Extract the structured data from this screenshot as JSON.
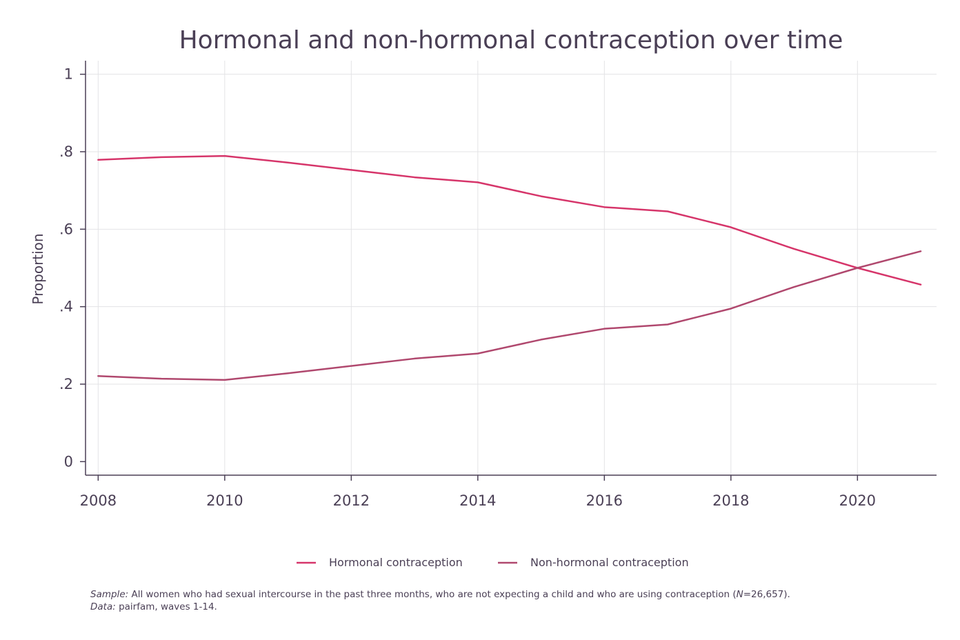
{
  "chart_data": {
    "type": "line",
    "title": "Hormonal and non-hormonal contraception over time",
    "xlabel": "",
    "ylabel": "Proportion",
    "x": [
      2008,
      2009,
      2010,
      2011,
      2012,
      2013,
      2014,
      2015,
      2016,
      2017,
      2018,
      2019,
      2020,
      2021
    ],
    "xlim": [
      2007.8,
      2021.25
    ],
    "ylim": [
      -0.035,
      1.035
    ],
    "xticks": [
      2008,
      2010,
      2012,
      2014,
      2016,
      2018,
      2020
    ],
    "xtick_labels": [
      "2008",
      "2010",
      "2012",
      "2014",
      "2016",
      "2018",
      "2020"
    ],
    "yticks": [
      0,
      0.2,
      0.4,
      0.6,
      0.8,
      1
    ],
    "ytick_labels": [
      "0",
      ".2",
      ".4",
      ".6",
      ".8",
      "1"
    ],
    "grid": true,
    "legend_position": "bottom",
    "series": [
      {
        "name": "Hormonal contraception",
        "color": "#d6356a",
        "values": [
          0.779,
          0.786,
          0.789,
          0.772,
          0.753,
          0.734,
          0.721,
          0.685,
          0.657,
          0.646,
          0.605,
          0.549,
          0.5,
          0.457
        ]
      },
      {
        "name": "Non-hormonal contraception",
        "color": "#b0486e",
        "values": [
          0.221,
          0.214,
          0.211,
          0.228,
          0.247,
          0.266,
          0.279,
          0.315,
          0.343,
          0.354,
          0.395,
          0.451,
          0.5,
          0.543
        ]
      }
    ]
  },
  "notes": {
    "sample_label": "Sample:",
    "sample_text_before_n": " All women who had sexual intercourse in the past three months, who are not expecting a child and who are using contraception (",
    "sample_n_label": "N",
    "sample_text_after_n": "=26,657).",
    "data_label": "Data:",
    "data_text": " pairfam, waves 1-14."
  }
}
